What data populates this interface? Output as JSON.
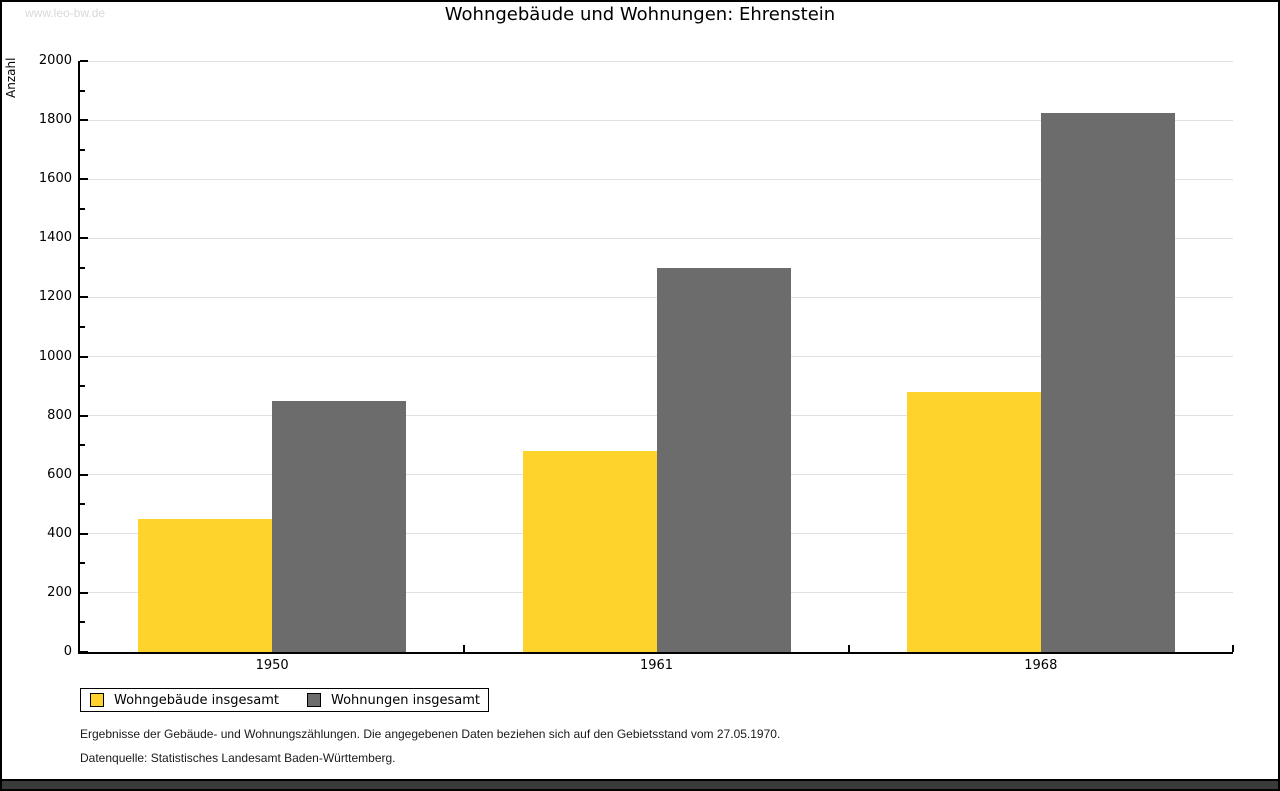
{
  "watermark": "www.leo-bw.de",
  "chart_data": {
    "type": "bar",
    "title": "Wohngebäude und Wohnungen: Ehrenstein",
    "xlabel": "",
    "ylabel": "Anzahl",
    "categories": [
      "1950",
      "1961",
      "1968"
    ],
    "series": [
      {
        "name": "Wohngebäude insgesamt",
        "color": "#fdd32c",
        "values": [
          450,
          680,
          880
        ]
      },
      {
        "name": "Wohnungen insgesamt",
        "color": "#6c6c6c",
        "values": [
          850,
          1300,
          1825
        ]
      }
    ],
    "ylim": [
      0,
      2000
    ],
    "ytick_step": 200,
    "minor_tick_step": 100,
    "grid": true,
    "gridline_color": "#e0e0e0",
    "legend_position": "bottom-left"
  },
  "footnotes": {
    "line1": "Ergebnisse der Gebäude- und Wohnungszählungen. Die angegebenen Daten beziehen sich auf den Gebietsstand vom 27.05.1970.",
    "line2": "Datenquelle: Statistisches Landesamt Baden-Württemberg."
  }
}
